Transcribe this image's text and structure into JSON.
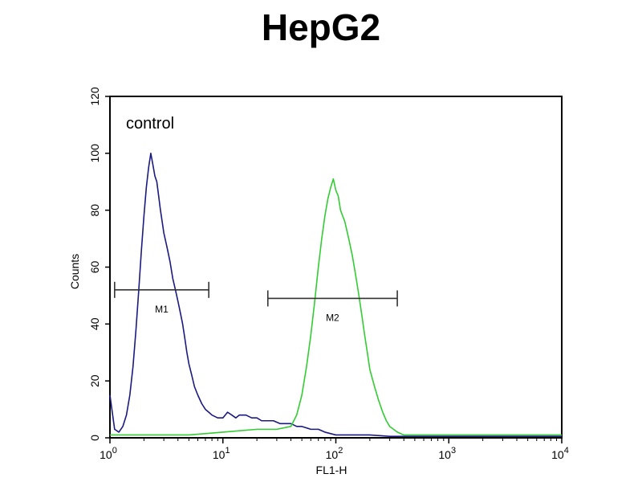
{
  "chart_data": {
    "type": "line",
    "title": "HepG2",
    "annotation": "control",
    "xlabel": "FL1-H",
    "ylabel": "Counts",
    "x_scale": "log",
    "xlim": [
      1,
      10000
    ],
    "ylim": [
      0,
      120
    ],
    "x_ticks": [
      {
        "value": 1,
        "base": "10",
        "exp": "0"
      },
      {
        "value": 10,
        "base": "10",
        "exp": "1"
      },
      {
        "value": 100,
        "base": "10",
        "exp": "2"
      },
      {
        "value": 1000,
        "base": "10",
        "exp": "3"
      },
      {
        "value": 10000,
        "base": "10",
        "exp": "4"
      }
    ],
    "y_ticks": [
      0,
      20,
      40,
      60,
      80,
      100,
      120
    ],
    "grid": false,
    "legend": "none",
    "series": [
      {
        "color": "#1a1a80",
        "x": [
          1.0,
          1.1,
          1.2,
          1.3,
          1.4,
          1.5,
          1.6,
          1.7,
          1.8,
          1.9,
          2.0,
          2.1,
          2.2,
          2.3,
          2.4,
          2.5,
          2.6,
          2.7,
          2.8,
          2.9,
          3.0,
          3.2,
          3.4,
          3.6,
          3.8,
          4.0,
          4.2,
          4.4,
          4.6,
          4.8,
          5.0,
          5.3,
          5.6,
          6.0,
          6.5,
          7.0,
          7.5,
          8.0,
          9.0,
          10.0,
          11.0,
          12.0,
          13.0,
          14.0,
          15.0,
          16.0,
          18.0,
          20.0,
          22.0,
          25.0,
          28.0,
          32.0,
          36.0,
          40.0,
          45.0,
          50.0,
          60.0,
          70.0,
          80.0,
          100.0,
          150.0,
          200.0,
          300.0,
          500.0,
          1000.0,
          2000.0,
          5000.0,
          10000.0
        ],
        "y": [
          15,
          3,
          2,
          4,
          8,
          15,
          25,
          38,
          52,
          66,
          78,
          88,
          95,
          100,
          96,
          92,
          90,
          85,
          80,
          76,
          72,
          67,
          62,
          56,
          52,
          48,
          44,
          40,
          35,
          30,
          26,
          22,
          18,
          15,
          12,
          10,
          9,
          8,
          7,
          7,
          9,
          8,
          7,
          8,
          8,
          8,
          7,
          7,
          6,
          6,
          6,
          5,
          5,
          5,
          4,
          4,
          3,
          3,
          2,
          1,
          1,
          1,
          0.5,
          0.5,
          0.5,
          0.5,
          0.5,
          0.5
        ]
      },
      {
        "color": "#33cc33",
        "x": [
          1.0,
          2.0,
          5.0,
          10.0,
          20.0,
          30.0,
          40.0,
          45.0,
          50.0,
          55.0,
          60.0,
          65.0,
          70.0,
          75.0,
          80.0,
          85.0,
          90.0,
          95.0,
          100.0,
          105.0,
          110.0,
          120.0,
          130.0,
          140.0,
          150.0,
          160.0,
          170.0,
          180.0,
          190.0,
          200.0,
          220.0,
          240.0,
          260.0,
          280.0,
          300.0,
          350.0,
          400.0,
          500.0,
          700.0,
          1000.0,
          2000.0,
          5000.0,
          10000.0
        ],
        "y": [
          1,
          1,
          1,
          2,
          3,
          3,
          4,
          8,
          15,
          25,
          36,
          48,
          60,
          70,
          78,
          84,
          88,
          91,
          87,
          85,
          80,
          76,
          70,
          64,
          57,
          50,
          43,
          36,
          30,
          24,
          18,
          13,
          9,
          6,
          4,
          2,
          1,
          1,
          1,
          1,
          1,
          1,
          1
        ]
      }
    ],
    "markers": [
      {
        "label": "M1",
        "x_start": 1.1,
        "x_end": 7.5,
        "y": 52
      },
      {
        "label": "M2",
        "x_start": 25,
        "x_end": 350,
        "y": 49
      }
    ]
  }
}
